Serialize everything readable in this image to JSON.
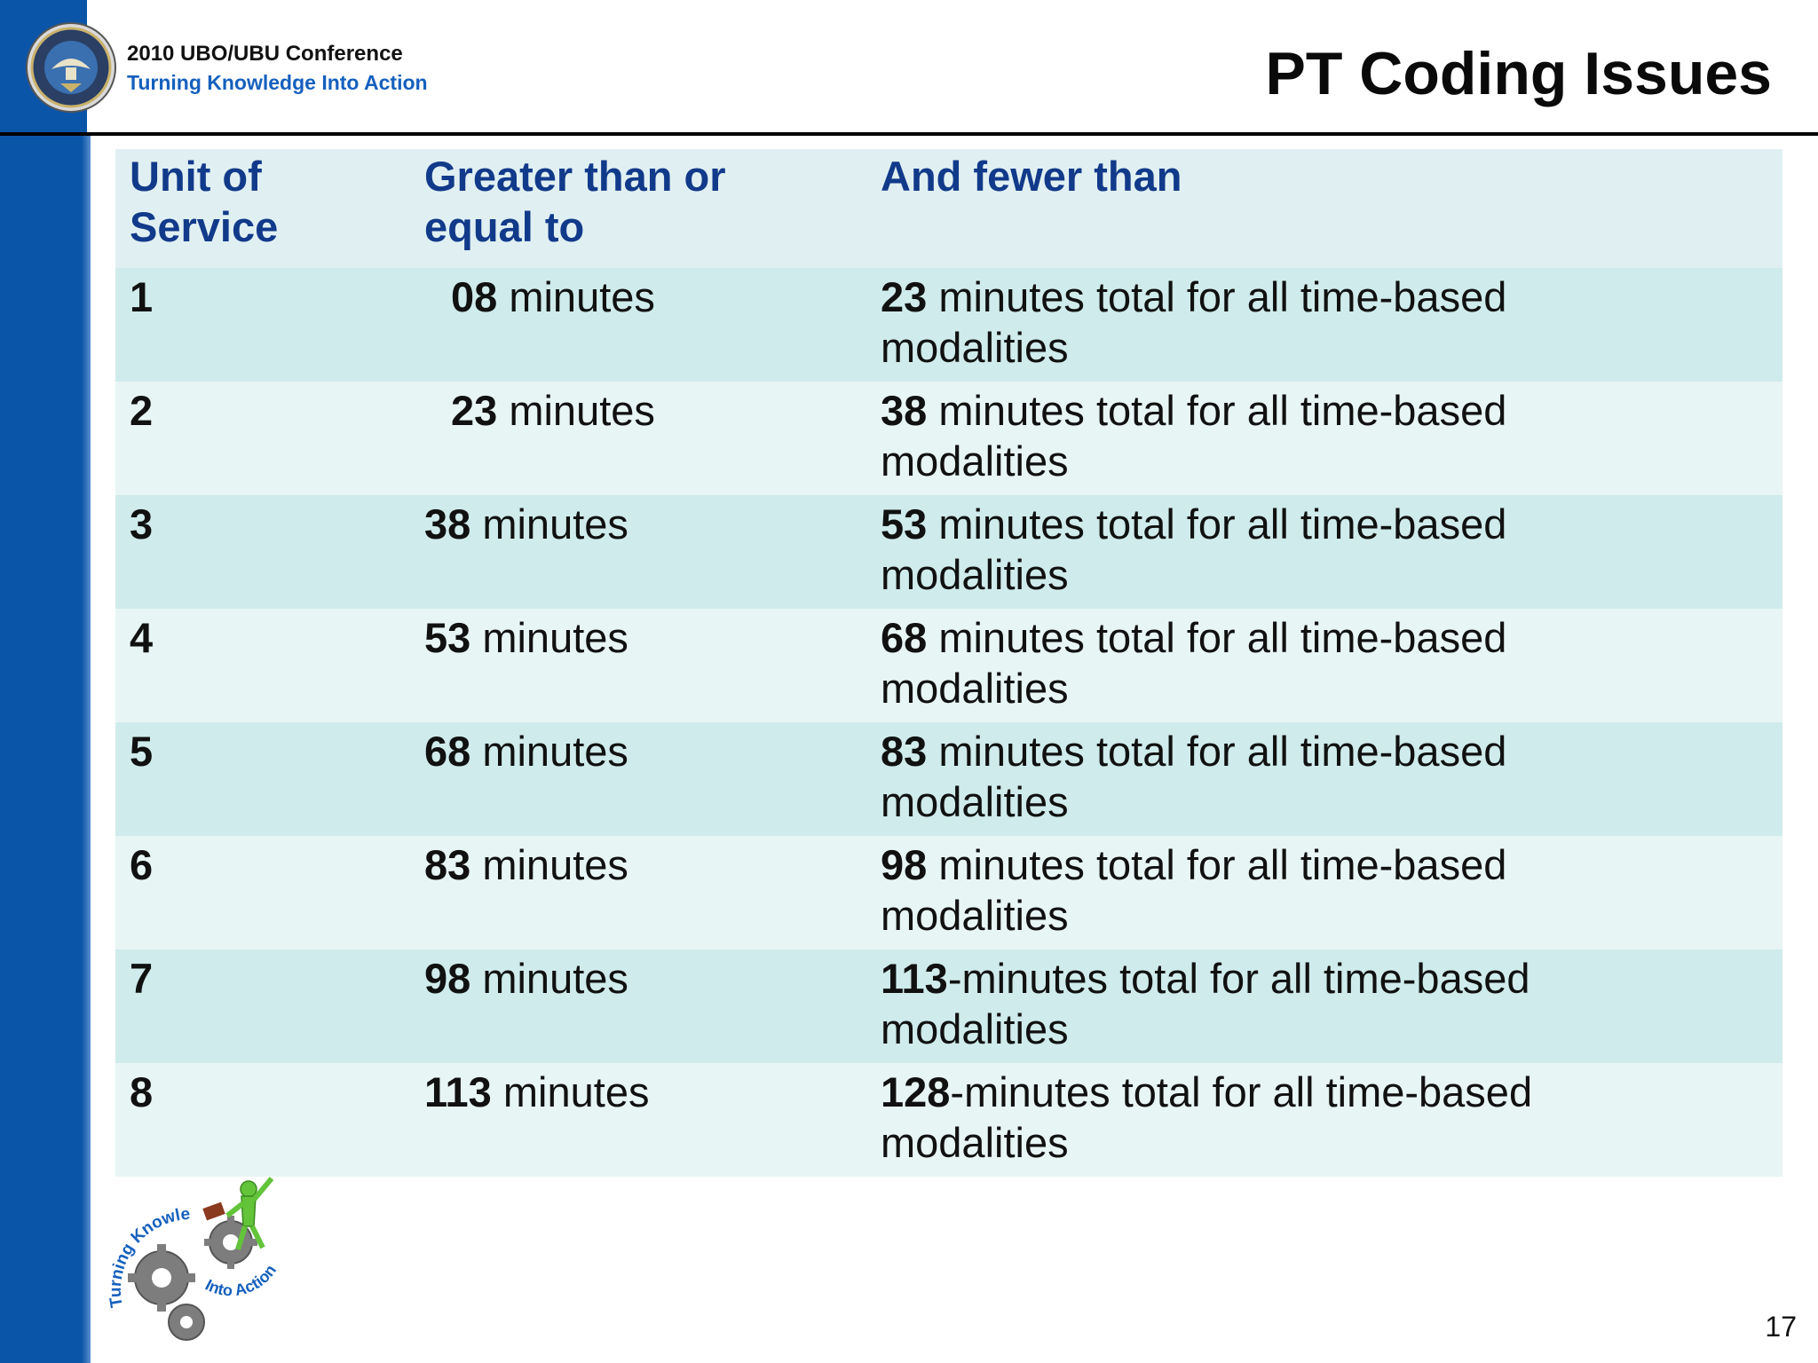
{
  "header": {
    "conference": "2010 UBO/UBU Conference",
    "tagline": "Turning Knowledge Into Action",
    "title": "PT Coding Issues"
  },
  "table": {
    "columns": [
      "Unit of Service",
      "Greater than or equal to",
      "And fewer than"
    ],
    "rows": [
      {
        "unit": "1",
        "gte_num": "08",
        "gte_suffix": " minutes",
        "lt_num": "23",
        "lt_suffix": " minutes total for all time-based modalities"
      },
      {
        "unit": "2",
        "gte_num": "23",
        "gte_suffix": " minutes",
        "lt_num": "38",
        "lt_suffix": " minutes total for all time-based modalities"
      },
      {
        "unit": "3",
        "gte_num": "38",
        "gte_suffix": " minutes",
        "lt_num": "53",
        "lt_suffix": " minutes total for all time-based modalities"
      },
      {
        "unit": "4",
        "gte_num": "53",
        "gte_suffix": " minutes",
        "lt_num": "68",
        "lt_suffix": " minutes total for all time-based modalities"
      },
      {
        "unit": "5",
        "gte_num": "68",
        "gte_suffix": " minutes",
        "lt_num": "83",
        "lt_suffix": " minutes total for all time-based modalities"
      },
      {
        "unit": "6",
        "gte_num": "83",
        "gte_suffix": " minutes",
        "lt_num": "98",
        "lt_suffix": " minutes total for all time-based modalities"
      },
      {
        "unit": "7",
        "gte_num": "98",
        "gte_suffix": " minutes",
        "lt_num": "113",
        "lt_suffix": "-minutes total for all time-based modalities"
      },
      {
        "unit": "8",
        "gte_num": "113",
        "gte_suffix": " minutes",
        "lt_num": "128",
        "lt_suffix": "-minutes total for all time-based modalities"
      }
    ]
  },
  "logo": {
    "arc_top": "Turning Knowledge",
    "arc_bottom": "Into Action"
  },
  "slide_number": "17",
  "colors": {
    "band": "#0b55a8",
    "header_text": "#123a8a",
    "tagline": "#1560bd",
    "row_odd": "#cfebeb",
    "row_even": "#e8f5f5"
  }
}
